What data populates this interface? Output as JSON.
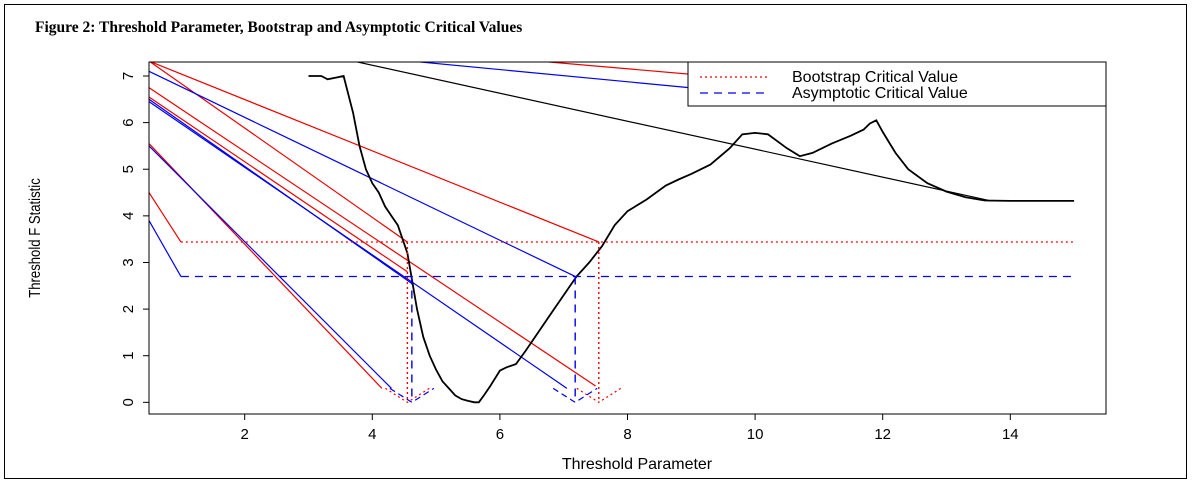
{
  "figure": {
    "title": "Figure 2: Threshold Parameter, Bootstrap and Asymptotic  Critical Values"
  },
  "chart_data": {
    "type": "line",
    "title": "Figure 2: Threshold Parameter, Bootstrap and Asymptotic  Critical Values",
    "xlabel": "Threshold Parameter",
    "ylabel": "Threshold F Statistic",
    "xlim": [
      0.5,
      15.5
    ],
    "ylim": [
      -0.25,
      7.3
    ],
    "x_ticks": [
      2,
      4,
      6,
      8,
      10,
      12,
      14
    ],
    "y_ticks": [
      0,
      1,
      2,
      3,
      4,
      5,
      6,
      7
    ],
    "grid": false,
    "legend_position": "top-right",
    "colors": {
      "f_statistic": "#000000",
      "bootstrap": "#ee0000",
      "asymptotic": "#0000ee"
    },
    "series": [
      {
        "key": "f_statistic",
        "style": "solid",
        "x": [
          3.0,
          3.2,
          3.3,
          3.45,
          3.55,
          3.7,
          3.8,
          3.9,
          4.0,
          4.1,
          4.2,
          4.3,
          4.4,
          4.45,
          4.5,
          4.55,
          4.6,
          4.7,
          4.8,
          4.9,
          5.0,
          5.1,
          5.2,
          5.3,
          5.4,
          5.5,
          5.6,
          5.67,
          5.75,
          5.85,
          6.0,
          6.1,
          6.25,
          6.4,
          6.6,
          6.8,
          7.0,
          7.2,
          7.4,
          7.6,
          7.8,
          8.0,
          8.3,
          8.6,
          8.8,
          9.0,
          9.3,
          9.6,
          9.8,
          10.0,
          10.2,
          10.5,
          10.7,
          10.9,
          11.2,
          11.5,
          11.7,
          11.8,
          11.9,
          12.0,
          12.2,
          12.4,
          12.7,
          13.0,
          13.3,
          13.6,
          14.0,
          14.5,
          15.0
        ],
        "y": [
          7.0,
          7.0,
          6.93,
          6.97,
          7.0,
          6.2,
          5.5,
          5.0,
          4.7,
          4.5,
          4.2,
          4.0,
          3.8,
          3.6,
          3.4,
          3.2,
          2.8,
          2.0,
          1.4,
          1.0,
          0.7,
          0.45,
          0.3,
          0.15,
          0.07,
          0.03,
          0.0,
          0.0,
          0.15,
          0.35,
          0.68,
          0.75,
          0.82,
          1.1,
          1.5,
          1.9,
          2.3,
          2.7,
          3.0,
          3.35,
          3.8,
          4.1,
          4.35,
          4.65,
          4.78,
          4.9,
          5.1,
          5.45,
          5.75,
          5.78,
          5.75,
          5.45,
          5.28,
          5.35,
          5.55,
          5.72,
          5.85,
          5.98,
          6.05,
          5.8,
          5.35,
          5.0,
          4.7,
          4.52,
          4.4,
          4.33,
          4.32,
          4.32,
          4.32
        ]
      },
      {
        "key": "bootstrap",
        "name": "Bootstrap Critical Value",
        "style": "dotted",
        "x": [
          1.0,
          15.0
        ],
        "y": [
          3.44,
          3.44
        ]
      },
      {
        "key": "asymptotic",
        "name": "Asymptotic Critical Value",
        "style": "dashed",
        "x": [
          1.0,
          15.0
        ],
        "y": [
          2.7,
          2.7
        ]
      }
    ],
    "pointer_lines": [
      {
        "color": "bootstrap",
        "x1": 0.5,
        "y1": 4.5,
        "x2": 1.0,
        "y2": 3.44
      },
      {
        "color": "asymptotic",
        "x1": 0.5,
        "y1": 3.9,
        "x2": 1.0,
        "y2": 2.7
      },
      {
        "color": "bootstrap",
        "x1": 0.5,
        "y1": 5.55,
        "x2": 4.15,
        "y2": 0.3
      },
      {
        "color": "asymptotic",
        "x1": 0.5,
        "y1": 5.5,
        "x2": 4.3,
        "y2": 0.3
      },
      {
        "color": "bootstrap",
        "x1": 0.5,
        "y1": 6.55,
        "x2": 4.55,
        "y2": 2.8
      },
      {
        "color": "asymptotic",
        "x1": 0.5,
        "y1": 6.5,
        "x2": 4.62,
        "y2": 2.55
      },
      {
        "color": "bootstrap",
        "x1": 0.5,
        "y1": 6.75,
        "x2": 7.5,
        "y2": 0.35
      },
      {
        "color": "asymptotic",
        "x1": 0.5,
        "y1": 6.45,
        "x2": 7.05,
        "y2": 0.3
      },
      {
        "color": "bootstrap",
        "x1": 0.5,
        "y1": 7.32,
        "x2": 4.55,
        "y2": 3.44
      },
      {
        "color": "asymptotic",
        "x1": 0.5,
        "y1": 7.1,
        "x2": 7.18,
        "y2": 2.7
      },
      {
        "color": "bootstrap",
        "x1": 0.5,
        "y1": 7.32,
        "x2": 7.55,
        "y2": 3.44
      },
      {
        "color": "asymptotic",
        "x1": 4.6,
        "y1": 7.32,
        "x2": 9.35,
        "y2": 6.7
      },
      {
        "color": "bootstrap",
        "x1": 6.6,
        "y1": 7.32,
        "x2": 9.3,
        "y2": 7.0
      },
      {
        "color": "f_statistic",
        "x1": 3.7,
        "y1": 7.32,
        "x2": 13.7,
        "y2": 4.32
      }
    ],
    "drop_lines": [
      {
        "color": "bootstrap",
        "style": "dotted",
        "x": 4.55,
        "y_top": 3.44
      },
      {
        "color": "bootstrap",
        "style": "dotted",
        "x": 7.55,
        "y_top": 3.44
      },
      {
        "color": "asymptotic",
        "style": "dashed",
        "x": 4.62,
        "y_top": 2.7
      },
      {
        "color": "asymptotic",
        "style": "dashed",
        "x": 7.18,
        "y_top": 2.7
      }
    ],
    "arrowheads": [
      {
        "color": "bootstrap",
        "x": 4.55
      },
      {
        "color": "asymptotic",
        "x": 4.62
      },
      {
        "color": "asymptotic",
        "x": 7.18
      },
      {
        "color": "bootstrap",
        "x": 7.55
      }
    ]
  }
}
